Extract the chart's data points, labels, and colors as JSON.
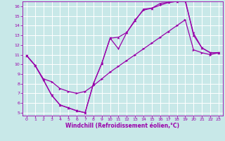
{
  "xlabel": "Windchill (Refroidissement éolien,°C)",
  "background_color": "#c8e8e8",
  "grid_color": "#ffffff",
  "line_color": "#9900aa",
  "xlim": [
    -0.5,
    23.5
  ],
  "ylim": [
    4.7,
    16.5
  ],
  "xticks": [
    0,
    1,
    2,
    3,
    4,
    5,
    6,
    7,
    8,
    9,
    10,
    11,
    12,
    13,
    14,
    15,
    16,
    17,
    18,
    19,
    20,
    21,
    22,
    23
  ],
  "yticks": [
    5,
    6,
    7,
    8,
    9,
    10,
    11,
    12,
    13,
    14,
    15,
    16
  ],
  "line1_x": [
    0,
    1,
    2,
    3,
    4,
    5,
    6,
    7,
    8,
    9,
    10,
    11,
    12,
    13,
    14,
    15,
    16,
    17,
    18,
    19,
    20,
    21,
    22,
    23
  ],
  "line1_y": [
    10.9,
    9.9,
    8.4,
    6.8,
    5.8,
    5.5,
    5.2,
    5.0,
    8.0,
    10.1,
    12.7,
    12.8,
    13.3,
    14.5,
    15.7,
    15.8,
    16.3,
    16.4,
    16.5,
    16.7,
    13.0,
    11.7,
    11.2,
    11.2
  ],
  "line2_x": [
    0,
    1,
    2,
    3,
    4,
    5,
    6,
    7,
    8,
    9,
    10,
    11,
    12,
    13,
    14,
    15,
    16,
    17,
    18,
    19,
    20,
    21,
    22,
    23
  ],
  "line2_y": [
    10.9,
    9.9,
    8.4,
    6.8,
    5.8,
    5.5,
    5.2,
    5.0,
    8.0,
    10.1,
    12.7,
    11.6,
    13.3,
    14.6,
    15.6,
    15.8,
    16.1,
    16.4,
    16.5,
    16.5,
    13.2,
    11.7,
    11.2,
    11.2
  ],
  "line3_x": [
    0,
    1,
    2,
    3,
    4,
    5,
    6,
    7,
    8,
    9,
    10,
    11,
    12,
    13,
    14,
    15,
    16,
    17,
    18,
    19,
    20,
    21,
    22,
    23
  ],
  "line3_y": [
    10.9,
    9.9,
    8.5,
    8.2,
    7.5,
    7.2,
    7.0,
    7.2,
    7.8,
    8.5,
    9.2,
    9.8,
    10.4,
    11.0,
    11.6,
    12.2,
    12.8,
    13.4,
    14.0,
    14.6,
    11.5,
    11.2,
    11.0,
    11.2
  ]
}
